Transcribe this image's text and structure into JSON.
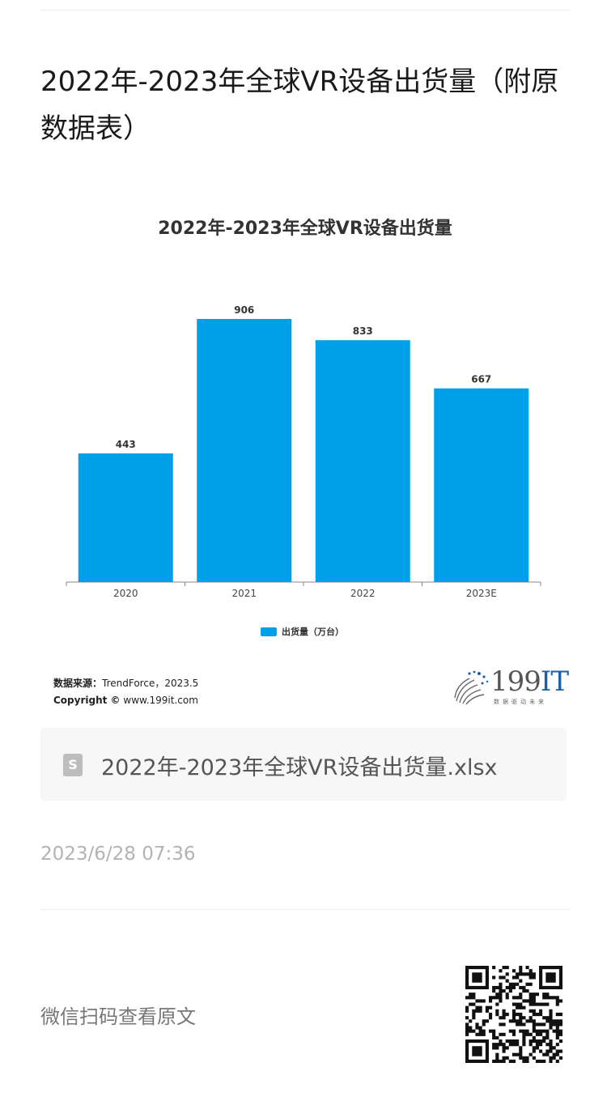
{
  "article": {
    "title": "2022年-2023年全球VR设备出货量（附原数据表）",
    "date": "2023/6/28 07:36",
    "read_original": "微信扫码查看原文"
  },
  "chart_data": {
    "type": "bar",
    "title": "2022年-2023年全球VR设备出货量",
    "categories": [
      "2020",
      "2021",
      "2022",
      "2023E"
    ],
    "series": [
      {
        "name": "出货量（万台）",
        "values": [
          443,
          906,
          833,
          667
        ]
      }
    ],
    "xlabel": "",
    "ylabel": "",
    "ylim": [
      0,
      906
    ],
    "grid": false,
    "legend": "bottom",
    "color": "#00A0E9"
  },
  "source": {
    "label": "数据来源：",
    "value": "TrendForce，2023.5",
    "copyright_label": "Copyright ©",
    "copyright_value": "www.199it.com"
  },
  "logo": {
    "text_num": "199",
    "text_it": "IT",
    "tagline": "数据驱动未来"
  },
  "file": {
    "icon": "spreadsheet-file-icon",
    "icon_letter": "S",
    "name": "2022年-2023年全球VR设备出货量.xlsx"
  },
  "qr": {
    "icon": "qr-code-icon"
  }
}
